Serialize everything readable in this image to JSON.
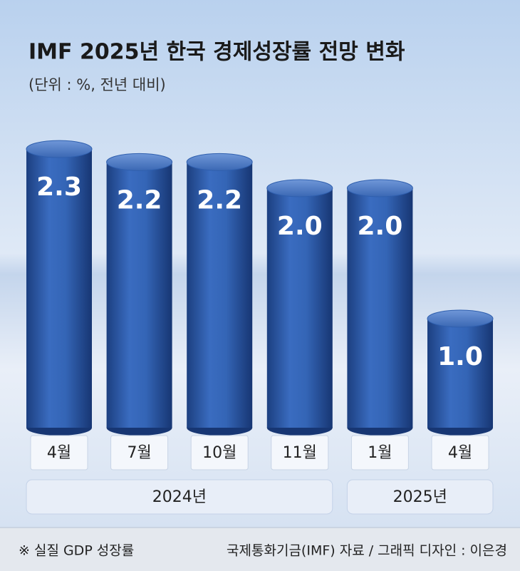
{
  "chart_data": {
    "type": "bar",
    "title": "IMF 2025년 한국 경제성장률 전망 변화",
    "subtitle": "(단위 : %, 전년 대비)",
    "groups": [
      {
        "label": "2024년",
        "categories": [
          "4월",
          "7월",
          "10월",
          "11월"
        ],
        "values": [
          2.3,
          2.2,
          2.2,
          2.0
        ],
        "value_labels": [
          "2.3",
          "2.2",
          "2.2",
          "2.0"
        ]
      },
      {
        "label": "2025년",
        "categories": [
          "1월",
          "4월"
        ],
        "values": [
          2.0,
          1.0
        ],
        "value_labels": [
          "2.0",
          "1.0"
        ]
      }
    ],
    "color": "#2f5fae",
    "footnote": "※ 실질 GDP 성장률",
    "source": "국제통화기금(IMF) 자료 / 그래픽 디자인 : 이은경"
  }
}
